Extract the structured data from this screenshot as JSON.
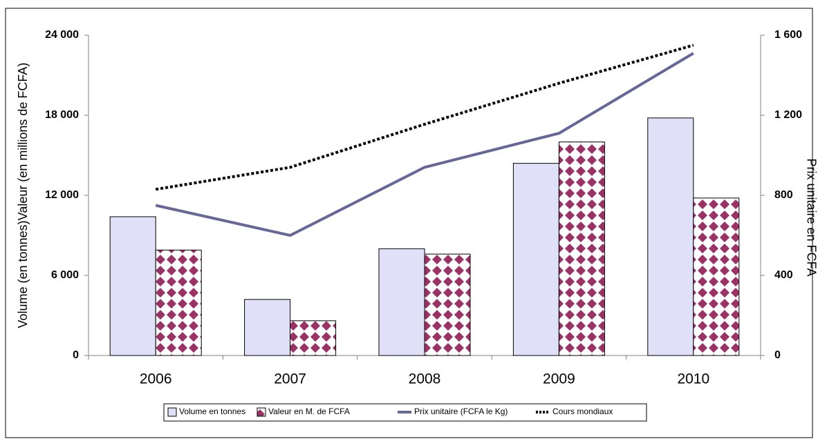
{
  "chart_data": {
    "type": "bar",
    "y_label": "Volume (en tonnes)Valeur (en millions de FCFA)",
    "y2_label": "Prix unitaire en FCFA",
    "categories": [
      "2006",
      "2007",
      "2008",
      "2009",
      "2010"
    ],
    "series": [
      {
        "name": "Volume en tonnes",
        "type": "bar",
        "color": "#e0e0f8",
        "values": [
          10400,
          4200,
          8000,
          14400,
          17800
        ]
      },
      {
        "name": "Valeur en M. de FCFA",
        "type": "bar",
        "color": "#993366",
        "pattern": true,
        "values": [
          7900,
          2600,
          7600,
          16000,
          11800
        ]
      },
      {
        "name": "Prix unitaire (FCFA le Kg)",
        "type": "line",
        "color": "#666699",
        "axis": "y2",
        "values": [
          750,
          600,
          940,
          1110,
          1510
        ]
      },
      {
        "name": "Cours mondiaux",
        "type": "line",
        "color": "#000000",
        "dotted": true,
        "axis": "y2",
        "values": [
          830,
          940,
          1155,
          1360,
          1550
        ]
      }
    ],
    "ylim": [
      0,
      24000
    ],
    "yticks": [
      {
        "value": 0,
        "label": "0"
      },
      {
        "value": 6000,
        "label": "6 000"
      },
      {
        "value": 12000,
        "label": "12 000"
      },
      {
        "value": 18000,
        "label": "18 000"
      },
      {
        "value": 24000,
        "label": "24 000"
      }
    ],
    "y2lim": [
      0,
      1600
    ],
    "y2ticks": [
      0,
      400,
      800,
      {
        "value": 1200,
        "label": "1 200"
      },
      {
        "value": 1600,
        "label": "1 600"
      }
    ],
    "legend": "bottom"
  }
}
